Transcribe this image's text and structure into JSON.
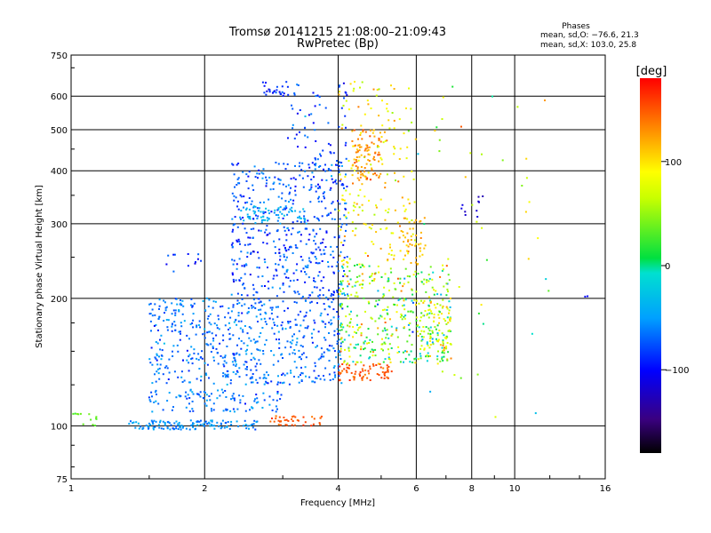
{
  "chart_data": {
    "type": "scatter",
    "title": "Tromsø 20141215 21:08:00–21:09:43",
    "subtitle": "RwPretec (Bp)",
    "xlabel": "Frequency [MHz]",
    "ylabel": "Stationary phase Virtual Height [km]",
    "x_scale": "log",
    "y_scale": "log",
    "xlim": [
      1,
      16
    ],
    "ylim": [
      75,
      750
    ],
    "x_ticks": [
      1,
      2,
      4,
      6,
      8,
      10,
      16
    ],
    "x_tick_labels": [
      "1",
      "2",
      "4",
      "6",
      "8",
      "10",
      "16"
    ],
    "y_ticks": [
      75,
      100,
      200,
      300,
      400,
      500,
      600,
      750
    ],
    "y_tick_labels": [
      "75",
      "100",
      "200",
      "300",
      "400",
      "500",
      "600",
      "750"
    ],
    "grid": true,
    "phases_box": {
      "title": "Phases",
      "line_O": "mean, sd,O: −76.6, 21.3",
      "line_X": "mean, sd,X: 103.0, 25.8"
    },
    "colorbar": {
      "label": "[deg]",
      "range": [
        -180,
        180
      ],
      "ticks": [
        -100,
        0,
        100
      ],
      "tick_labels": [
        "−100",
        "0",
        "100"
      ],
      "colormap": "rainbow"
    },
    "clusters": [
      {
        "x": [
          1.0,
          1.15
        ],
        "y": [
          100,
          108
        ],
        "phase_mean": 35,
        "phase_sd": 10,
        "count": 14
      },
      {
        "x": [
          1.35,
          2.7
        ],
        "y": [
          98,
          103
        ],
        "phase_mean": -55,
        "phase_sd": 18,
        "count": 130
      },
      {
        "x": [
          1.5,
          3.0
        ],
        "y": [
          108,
          122
        ],
        "phase_mean": -65,
        "phase_sd": 22,
        "count": 110
      },
      {
        "x": [
          1.5,
          4.1
        ],
        "y": [
          125,
          200
        ],
        "phase_mean": -65,
        "phase_sd": 25,
        "count": 600
      },
      {
        "x": [
          1.6,
          2.0
        ],
        "y": [
          230,
          260
        ],
        "phase_mean": -90,
        "phase_sd": 20,
        "count": 12
      },
      {
        "x": [
          2.3,
          4.2
        ],
        "y": [
          200,
          420
        ],
        "phase_mean": -75,
        "phase_sd": 28,
        "count": 500
      },
      {
        "x": [
          2.4,
          3.4
        ],
        "y": [
          300,
          330
        ],
        "phase_mean": -40,
        "phase_sd": 15,
        "count": 60
      },
      {
        "x": [
          2.7,
          3.1
        ],
        "y": [
          600,
          650
        ],
        "phase_mean": -90,
        "phase_sd": 20,
        "count": 25
      },
      {
        "x": [
          3.0,
          4.2
        ],
        "y": [
          420,
          650
        ],
        "phase_mean": -80,
        "phase_sd": 30,
        "count": 60
      },
      {
        "x": [
          2.8,
          3.7
        ],
        "y": [
          100,
          106
        ],
        "phase_mean": 150,
        "phase_sd": 15,
        "count": 40
      },
      {
        "x": [
          4.0,
          6.0
        ],
        "y": [
          240,
          650
        ],
        "phase_mean": 90,
        "phase_sd": 40,
        "count": 180
      },
      {
        "x": [
          4.3,
          5.0
        ],
        "y": [
          380,
          500
        ],
        "phase_mean": 130,
        "phase_sd": 20,
        "count": 90
      },
      {
        "x": [
          4.0,
          5.3
        ],
        "y": [
          128,
          140
        ],
        "phase_mean": 150,
        "phase_sd": 15,
        "count": 70
      },
      {
        "x": [
          4.0,
          7.2
        ],
        "y": [
          140,
          240
        ],
        "phase_mean": 40,
        "phase_sd": 80,
        "count": 420
      },
      {
        "x": [
          5.5,
          6.3
        ],
        "y": [
          240,
          310
        ],
        "phase_mean": 120,
        "phase_sd": 20,
        "count": 45
      },
      {
        "x": [
          6.0,
          7.2
        ],
        "y": [
          150,
          200
        ],
        "phase_mean": 80,
        "phase_sd": 40,
        "count": 60
      },
      {
        "x": [
          6.0,
          12.0
        ],
        "y": [
          100,
          700
        ],
        "phase_mean": 60,
        "phase_sd": 80,
        "count": 45
      },
      {
        "x": [
          7.5,
          8.7
        ],
        "y": [
          310,
          350
        ],
        "phase_mean": -120,
        "phase_sd": 10,
        "count": 10
      },
      {
        "x": [
          14.3,
          14.7
        ],
        "y": [
          200,
          210
        ],
        "phase_mean": -100,
        "phase_sd": 5,
        "count": 2
      }
    ]
  }
}
